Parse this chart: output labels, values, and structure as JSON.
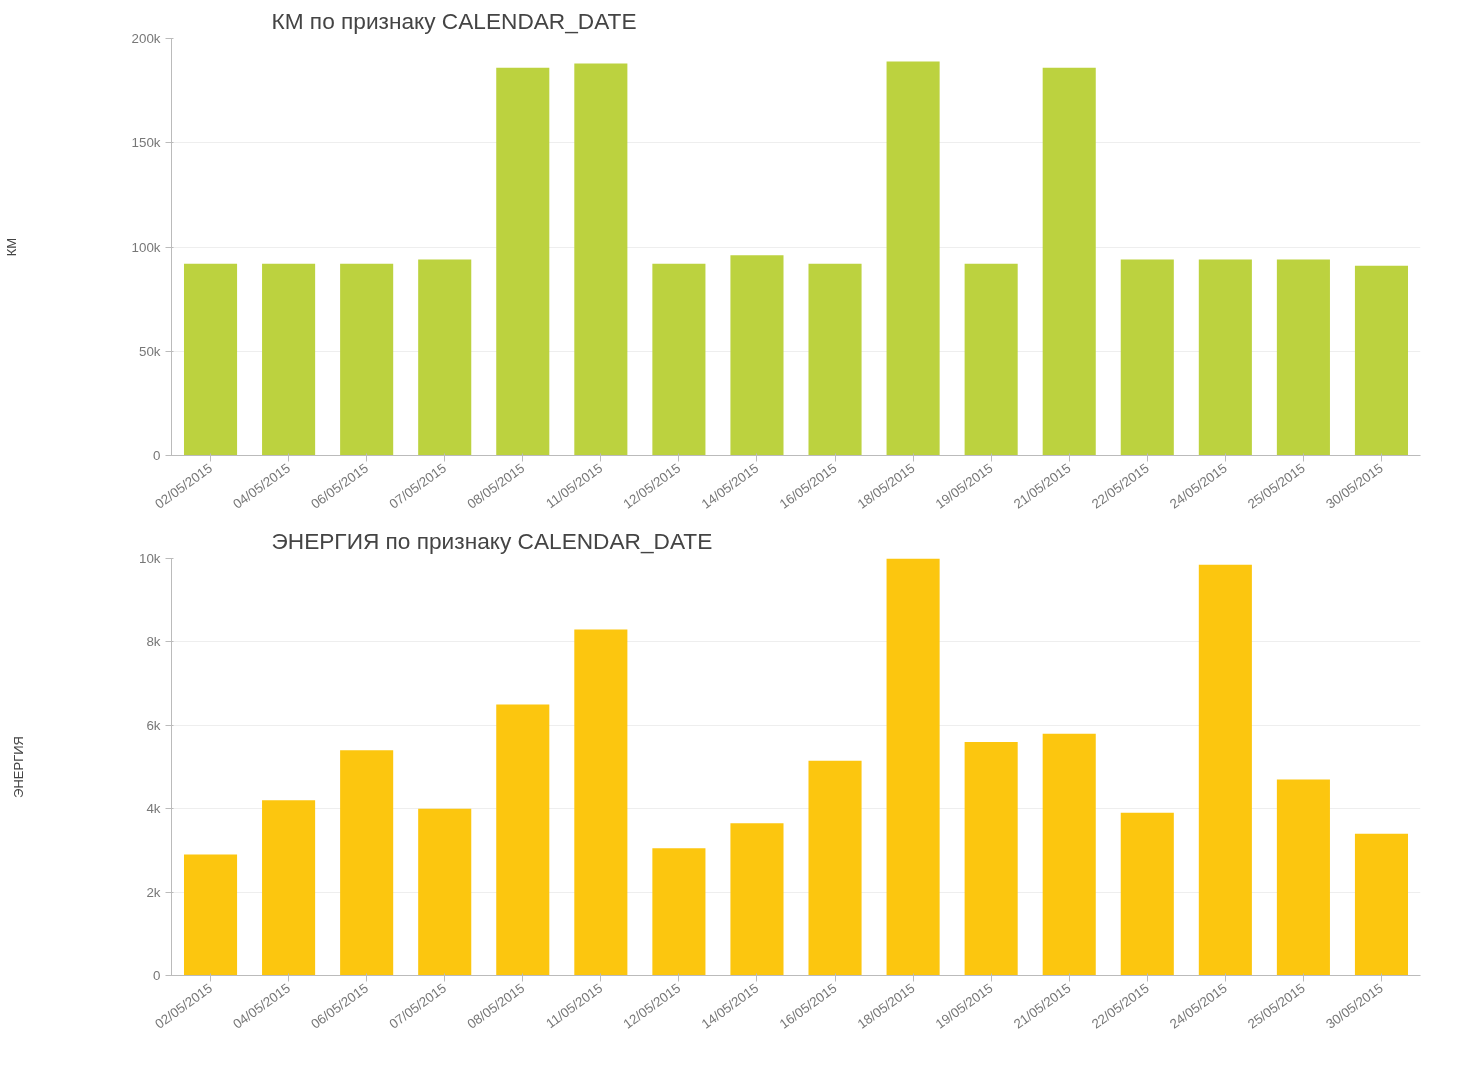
{
  "chart_data": [
    {
      "type": "bar",
      "title": "КМ по признаку CALENDAR_DATE",
      "ylabel": "КМ",
      "categories": [
        "02/05/2015",
        "04/05/2015",
        "06/05/2015",
        "07/05/2015",
        "08/05/2015",
        "11/05/2015",
        "12/05/2015",
        "14/05/2015",
        "16/05/2015",
        "18/05/2015",
        "19/05/2015",
        "21/05/2015",
        "22/05/2015",
        "24/05/2015",
        "25/05/2015",
        "30/05/2015"
      ],
      "values": [
        92000,
        92000,
        92000,
        94000,
        186000,
        188000,
        92000,
        96000,
        92000,
        189000,
        92000,
        186000,
        94000,
        94000,
        94000,
        91000
      ],
      "color": "#bcd23f",
      "ylim": [
        0,
        200000
      ],
      "yticks": [
        0,
        {
          "value": 50000,
          "label": "50k"
        },
        {
          "value": 100000,
          "label": "100k"
        },
        {
          "value": 150000,
          "label": "150k"
        },
        {
          "value": 200000,
          "label": "200k"
        }
      ],
      "grid": "y"
    },
    {
      "type": "bar",
      "title": "ЭНЕРГИЯ по признаку CALENDAR_DATE",
      "ylabel": "ЭНЕРГИЯ",
      "categories": [
        "02/05/2015",
        "04/05/2015",
        "06/05/2015",
        "07/05/2015",
        "08/05/2015",
        "11/05/2015",
        "12/05/2015",
        "14/05/2015",
        "16/05/2015",
        "18/05/2015",
        "19/05/2015",
        "21/05/2015",
        "22/05/2015",
        "24/05/2015",
        "25/05/2015",
        "30/05/2015"
      ],
      "values": [
        2900,
        4200,
        5400,
        4000,
        6500,
        8300,
        3050,
        3650,
        5150,
        10000,
        5600,
        5800,
        3900,
        9850,
        4700,
        3400
      ],
      "color": "#fcc60f",
      "ylim": [
        0,
        10000
      ],
      "yticks": [
        0,
        {
          "value": 2000,
          "label": "2k"
        },
        {
          "value": 4000,
          "label": "4k"
        },
        {
          "value": 6000,
          "label": "6k"
        },
        {
          "value": 8000,
          "label": "8k"
        },
        {
          "value": 10000,
          "label": "10k"
        }
      ],
      "grid": "y"
    }
  ]
}
